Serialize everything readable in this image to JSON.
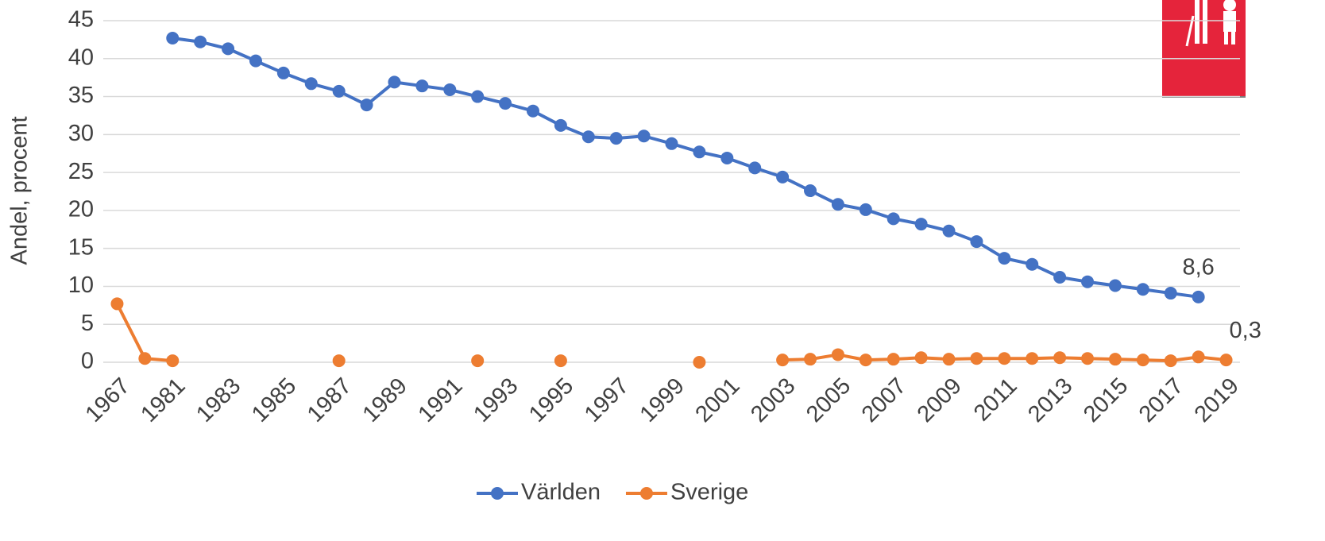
{
  "chart_data": {
    "type": "line",
    "y_label": "Andel, procent",
    "categories": [
      "1967",
      null,
      "1981",
      null,
      "1983",
      null,
      "1985",
      null,
      "1987",
      null,
      "1989",
      null,
      "1991",
      null,
      "1993",
      null,
      "1995",
      null,
      "1997",
      null,
      "1999",
      null,
      "2001",
      null,
      "2003",
      null,
      "2005",
      null,
      "2007",
      null,
      "2009",
      null,
      "2011",
      null,
      "2013",
      null,
      "2015",
      null,
      "2017",
      null,
      "2019"
    ],
    "series": [
      {
        "name": "Världen",
        "color": "#4472c4",
        "values": [
          null,
          null,
          42.7,
          42.2,
          41.3,
          39.7,
          38.1,
          36.7,
          35.7,
          33.9,
          36.9,
          36.4,
          35.9,
          35.0,
          34.1,
          33.1,
          31.2,
          29.7,
          29.5,
          29.8,
          28.8,
          27.7,
          26.9,
          25.6,
          24.4,
          22.6,
          20.8,
          20.1,
          18.9,
          18.2,
          17.3,
          15.9,
          13.7,
          12.9,
          11.2,
          10.6,
          10.1,
          9.6,
          9.1,
          8.6,
          null
        ],
        "value_labels": [
          null,
          null,
          null,
          null,
          null,
          null,
          null,
          null,
          null,
          null,
          null,
          null,
          null,
          null,
          null,
          null,
          null,
          null,
          null,
          null,
          null,
          null,
          null,
          null,
          null,
          null,
          null,
          null,
          null,
          null,
          null,
          null,
          null,
          null,
          null,
          null,
          null,
          null,
          null,
          "8,6",
          null
        ]
      },
      {
        "name": "Sverige",
        "color": "#ed7d31",
        "values": [
          7.7,
          0.5,
          0.2,
          null,
          null,
          null,
          null,
          null,
          0.2,
          null,
          null,
          null,
          null,
          0.2,
          null,
          null,
          0.2,
          null,
          null,
          null,
          null,
          0.0,
          null,
          null,
          0.3,
          0.4,
          1.0,
          0.3,
          0.4,
          0.6,
          0.4,
          0.5,
          0.5,
          0.5,
          0.6,
          0.5,
          0.4,
          0.3,
          0.2,
          0.7,
          0.3
        ],
        "value_labels": [
          null,
          null,
          null,
          null,
          null,
          null,
          null,
          null,
          null,
          null,
          null,
          null,
          null,
          null,
          null,
          null,
          null,
          null,
          null,
          null,
          null,
          null,
          null,
          null,
          null,
          null,
          null,
          null,
          null,
          null,
          null,
          null,
          null,
          null,
          null,
          null,
          null,
          null,
          null,
          null,
          "0,3"
        ]
      }
    ],
    "ylim": [
      0,
      45
    ],
    "yticks": [
      0,
      5,
      10,
      15,
      20,
      25,
      30,
      35,
      40,
      45
    ],
    "grid": true,
    "legend": "bottom"
  }
}
